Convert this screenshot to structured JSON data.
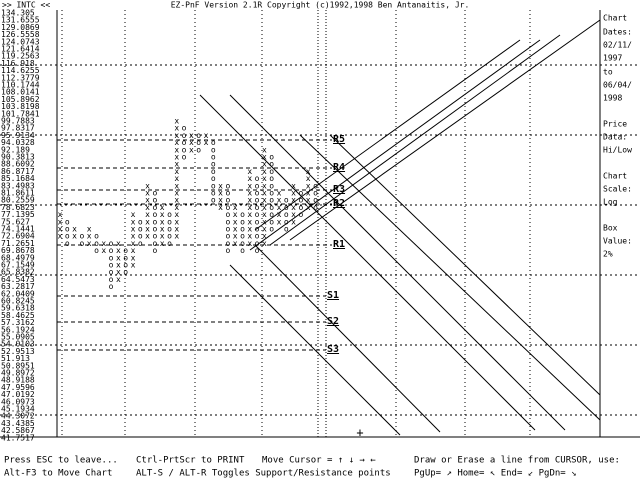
{
  "header": {
    "symbol": ">> INTC <<",
    "title": "EZ-PnF Version 2.1R Copyright (c)1992,1998 Ben Antanaitis, Jr."
  },
  "price_labels": [
    "134.305",
    "131.6555",
    "129.0869",
    "126.5558",
    "124.0743",
    "121.6414",
    "119.2563",
    "116.918",
    "114.6255",
    "112.3779",
    "110.1744",
    "108.0141",
    "105.8962",
    "103.8198",
    "101.7841",
    "99.7883",
    "97.8317",
    "95.9134",
    "94.0328",
    "92.189",
    "90.3813",
    "88.6092",
    "86.8717",
    "85.1684",
    "83.4983",
    "81.8611",
    "80.2559",
    "78.6823",
    "77.1395",
    "75.627",
    "74.1441",
    "72.6904",
    "71.2651",
    "69.8678",
    "68.4979",
    "67.1549",
    "65.8382",
    "64.5473",
    "63.2817",
    "62.0409",
    "60.8245",
    "59.6318",
    "58.4625",
    "57.3162",
    "56.1924",
    "55.0905",
    "54.0103",
    "52.9513",
    "51.913",
    "50.8951",
    "49.8972",
    "48.9188",
    "47.9596",
    "47.0192",
    "46.0973",
    "45.1934",
    "44.3072",
    "43.4385",
    "42.5867",
    "41.7517"
  ],
  "columns": [
    {
      "mark": "x",
      "top": 77.14,
      "bottom": 72.69
    },
    {
      "mark": "o",
      "top": 75.63,
      "bottom": 71.27
    },
    {
      "mark": "x",
      "top": 74.14,
      "bottom": 72.69
    },
    {
      "mark": "o",
      "top": 72.69,
      "bottom": 71.27
    },
    {
      "mark": "x",
      "top": 74.14,
      "bottom": 71.27
    },
    {
      "mark": "o",
      "top": 72.69,
      "bottom": 69.87
    },
    {
      "mark": "x",
      "top": 71.27,
      "bottom": 69.87
    },
    {
      "mark": "o",
      "top": 71.27,
      "bottom": 63.28
    },
    {
      "mark": "x",
      "top": 71.27,
      "bottom": 64.55
    },
    {
      "mark": "o",
      "top": 69.87,
      "bottom": 65.84
    },
    {
      "mark": "x",
      "top": 77.14,
      "bottom": 67.15
    },
    {
      "mark": "o",
      "top": 75.63,
      "bottom": 71.27
    },
    {
      "mark": "x",
      "top": 83.5,
      "bottom": 72.69
    },
    {
      "mark": "o",
      "top": 81.86,
      "bottom": 69.87
    },
    {
      "mark": "x",
      "top": 78.68,
      "bottom": 71.27
    },
    {
      "mark": "o",
      "top": 77.14,
      "bottom": 71.27
    },
    {
      "mark": "x",
      "top": 99.79,
      "bottom": 72.69
    },
    {
      "mark": "o",
      "top": 97.83,
      "bottom": 90.38
    },
    {
      "mark": "x",
      "top": 95.91,
      "bottom": 92.19
    },
    {
      "mark": "o",
      "top": 95.91,
      "bottom": 92.19
    },
    {
      "mark": "x",
      "top": 95.91,
      "bottom": 94.03
    },
    {
      "mark": "o",
      "top": 94.03,
      "bottom": 80.26
    },
    {
      "mark": "x",
      "top": 83.5,
      "bottom": 78.68
    },
    {
      "mark": "o",
      "top": 83.5,
      "bottom": 69.87
    },
    {
      "mark": "x",
      "top": 78.68,
      "bottom": 71.27
    },
    {
      "mark": "o",
      "top": 77.14,
      "bottom": 69.87
    },
    {
      "mark": "x",
      "top": 86.87,
      "bottom": 71.27
    },
    {
      "mark": "o",
      "top": 85.17,
      "bottom": 69.87
    },
    {
      "mark": "x",
      "top": 92.19,
      "bottom": 71.27
    },
    {
      "mark": "o",
      "top": 90.38,
      "bottom": 74.14
    },
    {
      "mark": "x",
      "top": 81.86,
      "bottom": 75.63
    },
    {
      "mark": "o",
      "top": 80.26,
      "bottom": 74.14
    },
    {
      "mark": "x",
      "top": 83.5,
      "bottom": 75.63
    },
    {
      "mark": "o",
      "top": 81.86,
      "bottom": 77.14
    },
    {
      "mark": "x",
      "top": 86.87,
      "bottom": 78.68
    },
    {
      "mark": "o",
      "top": 83.5,
      "bottom": 78.68
    }
  ],
  "levels": [
    "R5",
    "R4",
    "R3",
    "R2",
    "R1",
    "S1",
    "S2",
    "S3"
  ],
  "side_panel": [
    "Chart",
    "Dates:",
    "02/11/",
    "1997",
    "to",
    "06/04/",
    "1998",
    "Price",
    "Data:",
    "Hi/Low",
    "Chart",
    "Scale:",
    "Log",
    "Box",
    "Value:",
    "2%"
  ],
  "footer": {
    "line1": [
      "Press ESC to leave...",
      "Ctrl-PrtScr to PRINT",
      "Move Cursor = ↑ ↓ → ←",
      "Draw or Erase a line from CURSOR, use:"
    ],
    "line2": [
      "Alt-F3 to Move Chart",
      "ALT-S / ALT-R Toggles Support/Resistance points",
      "PgUp= ↗ Home= ↖ End= ↙ PgDn= ↘"
    ]
  }
}
